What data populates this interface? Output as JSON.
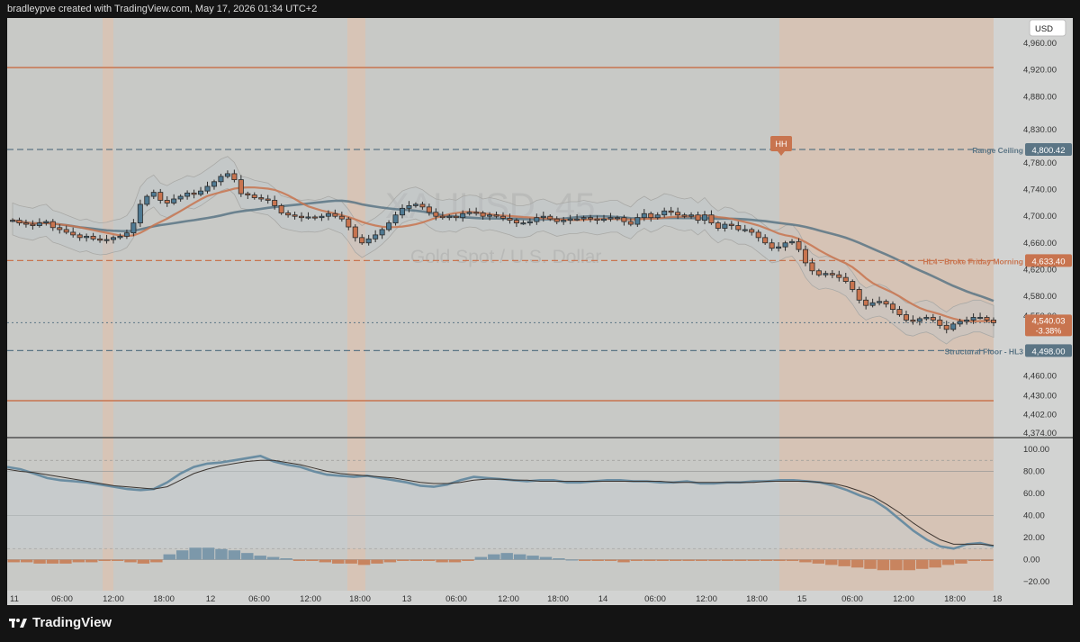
{
  "credit": "bradleypve created with TradingView.com, May 17, 2026 01:34 UTC+2",
  "brand": "TradingView",
  "currency_button": "USD",
  "watermark": {
    "symbol": "XAUUSD, 45",
    "name": "Gold Spot / U.S. Dollar"
  },
  "colors": {
    "candle_up": "#4f7a93",
    "candle_down": "#c8744f",
    "level_line": "#5b7585",
    "orange": "#c8744f",
    "blue": "#5b7585"
  },
  "levels": [
    {
      "label": "Range Ceiling",
      "value": "4,800.42",
      "price": 4800.42,
      "color": "#5b7585"
    },
    {
      "label": "HL4 - Broke Friday Morning",
      "value": "4,633.40",
      "price": 4633.4,
      "color": "#c8744f"
    },
    {
      "label": "Structural Floor - HL3",
      "value": "4,498.00",
      "price": 4498.0,
      "color": "#5b7585"
    }
  ],
  "last_price": {
    "value": "4,540.03",
    "change": "-3.38%",
    "price": 4540.03
  },
  "marker": {
    "label": "HH"
  },
  "chart_data": [
    {
      "type": "candlestick",
      "ylim": [
        4374,
        4990
      ],
      "y_ticks": [
        "4,960.00",
        "4,920.00",
        "4,880.00",
        "4,830.00",
        "4,780.00",
        "4,740.00",
        "4,700.00",
        "4,660.00",
        "4,620.00",
        "4,580.00",
        "4,550.00",
        "4,520.00",
        "4,498.00",
        "4,460.00",
        "4,430.00",
        "4,402.00",
        "4,374.00"
      ],
      "x_ticks": [
        "11",
        "06:00",
        "12:00",
        "18:00",
        "12",
        "06:00",
        "12:00",
        "18:00",
        "13",
        "06:00",
        "12:00",
        "18:00",
        "14",
        "06:00",
        "12:00",
        "18:00",
        "15",
        "06:00",
        "12:00",
        "18:00",
        "18"
      ],
      "horizontal_lines": [
        4926,
        4800.42,
        4633.4,
        4498.0,
        4417
      ],
      "close_path": [
        4694,
        4690,
        4688,
        4686,
        4690,
        4692,
        4683,
        4680,
        4676,
        4672,
        4668,
        4670,
        4666,
        4664,
        4665,
        4668,
        4670,
        4675,
        4690,
        4718,
        4730,
        4736,
        4724,
        4720,
        4726,
        4730,
        4735,
        4733,
        4738,
        4745,
        4752,
        4760,
        4764,
        4755,
        4734,
        4732,
        4728,
        4726,
        4724,
        4716,
        4705,
        4702,
        4700,
        4698,
        4699,
        4698,
        4700,
        4704,
        4700,
        4696,
        4684,
        4668,
        4660,
        4666,
        4672,
        4680,
        4690,
        4702,
        4712,
        4716,
        4718,
        4714,
        4706,
        4700,
        4698,
        4700,
        4698,
        4704,
        4706,
        4705,
        4700,
        4702,
        4700,
        4697,
        4694,
        4690,
        4690,
        4692,
        4698,
        4700,
        4696,
        4692,
        4694,
        4696,
        4696,
        4698,
        4696,
        4694,
        4696,
        4698,
        4698,
        4692,
        4688,
        4698,
        4704,
        4698,
        4702,
        4708,
        4706,
        4702,
        4700,
        4702,
        4694,
        4702,
        4690,
        4682,
        4688,
        4686,
        4680,
        4680,
        4676,
        4668,
        4660,
        4652,
        4654,
        4660,
        4662,
        4650,
        4630,
        4618,
        4612,
        4614,
        4612,
        4608,
        4602,
        4590,
        4574,
        4566,
        4570,
        4572,
        4568,
        4560,
        4552,
        4544,
        4542,
        4546,
        4548,
        4544,
        4536,
        4530,
        4538,
        4542,
        4544,
        4548,
        4548,
        4544,
        4540
      ]
    },
    {
      "type": "line",
      "ylim": [
        -20,
        100
      ],
      "y_ticks": [
        "100.00",
        "80.00",
        "60.00",
        "40.00",
        "20.00",
        "0.00",
        "−20.00"
      ],
      "series": [
        {
          "values": [
            84,
            82,
            78,
            74,
            72,
            71,
            70,
            68,
            66,
            64,
            63,
            64,
            70,
            78,
            84,
            87,
            88,
            90,
            92,
            94,
            89,
            86,
            84,
            80,
            77,
            76,
            75,
            76,
            74,
            72,
            70,
            67,
            66,
            68,
            72,
            75,
            74,
            73,
            72,
            71,
            72,
            72,
            70,
            70,
            71,
            72,
            72,
            71,
            71,
            70,
            70,
            71,
            69,
            69,
            70,
            70,
            71,
            71,
            72,
            72,
            71,
            70,
            67,
            63,
            58,
            54,
            46,
            36,
            26,
            18,
            12,
            10,
            14,
            15,
            12
          ]
        },
        {
          "values": [
            82,
            80,
            79,
            77,
            75,
            73,
            71,
            69,
            67,
            66,
            65,
            64,
            66,
            72,
            78,
            82,
            85,
            87,
            89,
            90,
            90,
            88,
            86,
            83,
            80,
            78,
            77,
            76,
            75,
            74,
            72,
            70,
            69,
            69,
            70,
            72,
            73,
            73,
            72,
            72,
            71,
            71,
            71,
            71,
            71,
            71,
            71,
            71,
            71,
            71,
            70,
            70,
            70,
            70,
            70,
            70,
            70,
            71,
            71,
            71,
            71,
            70,
            69,
            66,
            62,
            57,
            50,
            42,
            33,
            25,
            18,
            14,
            14,
            14,
            13
          ]
        }
      ],
      "histogram": [
        -2,
        -2,
        -3,
        -3,
        -3,
        -2,
        -2,
        -1,
        -1,
        -2,
        -3,
        -2,
        4,
        7,
        9,
        9,
        8,
        7,
        5,
        3,
        2,
        1,
        -1,
        -1,
        -2,
        -3,
        -3,
        -4,
        -3,
        -2,
        -1,
        -1,
        -1,
        -2,
        -2,
        -1,
        2,
        4,
        5,
        4,
        3,
        2,
        1,
        0,
        -1,
        -1,
        -1,
        -2,
        -1,
        -1,
        -1,
        -1,
        -1,
        -1,
        -1,
        -1,
        -1,
        -1,
        -1,
        -1,
        -1,
        -2,
        -3,
        -4,
        -5,
        -6,
        -7,
        -8,
        -8,
        -8,
        -7,
        -6,
        -4,
        -3,
        -1,
        -1
      ]
    }
  ]
}
